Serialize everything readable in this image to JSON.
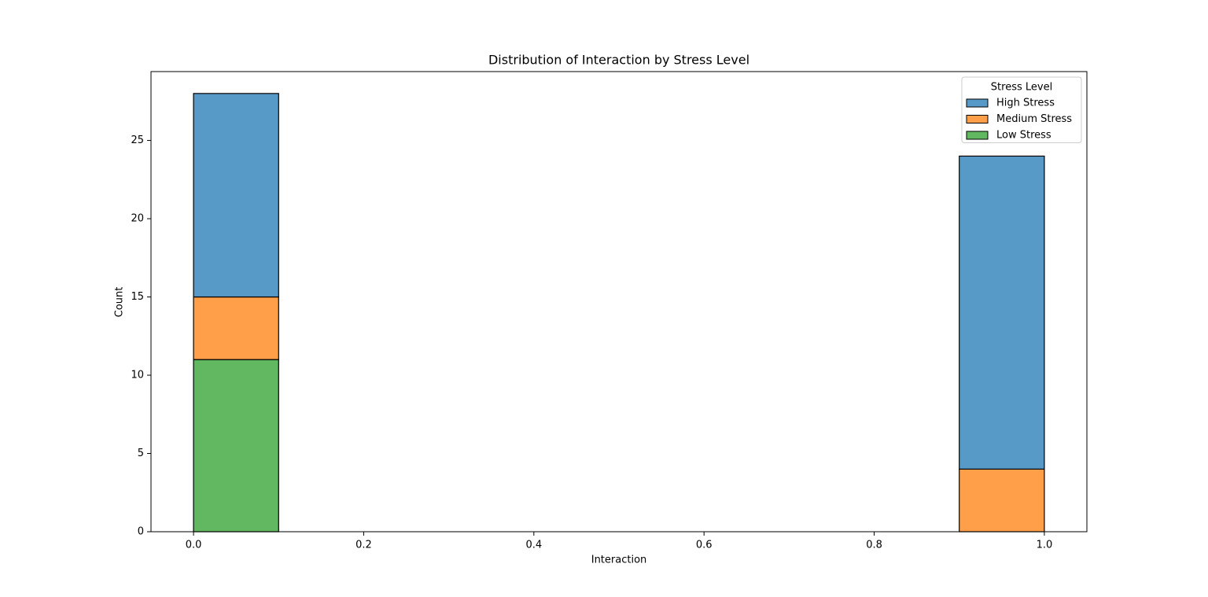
{
  "chart_data": {
    "type": "histogram",
    "title": "Distribution of Interaction by Stress Level",
    "x_label": "Interaction",
    "y_label": "Count",
    "legend_title": "Stress Level",
    "legend_position": "upper right",
    "stacked": true,
    "bins": [
      0,
      0.1,
      0.2,
      0.3,
      0.4,
      0.5,
      0.6,
      0.7,
      0.8,
      0.9,
      1.0
    ],
    "series": [
      {
        "name": "High Stress",
        "color": "#5799c7",
        "values": [
          13,
          0,
          0,
          0,
          0,
          0,
          0,
          0,
          0,
          20
        ]
      },
      {
        "name": "Medium Stress",
        "color": "#ff9f4a",
        "values": [
          4,
          0,
          0,
          0,
          0,
          0,
          0,
          0,
          0,
          4
        ]
      },
      {
        "name": "Low Stress",
        "color": "#61b861",
        "values": [
          11,
          0,
          0,
          0,
          0,
          0,
          0,
          0,
          0,
          0
        ]
      }
    ],
    "xlim": [
      -0.05,
      1.05
    ],
    "xticks": [
      {
        "value": 0,
        "label": "0.0"
      },
      0.2,
      0.4,
      0.6,
      0.8,
      {
        "value": 1,
        "label": "1.0"
      }
    ],
    "ylim": [
      0,
      29.4
    ],
    "yticks": [
      0,
      5,
      10,
      15,
      20,
      25
    ]
  }
}
